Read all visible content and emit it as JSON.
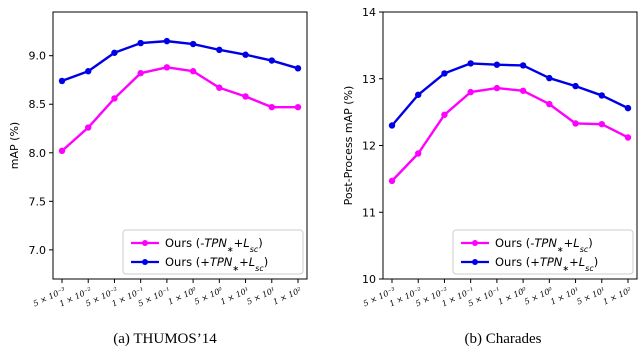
{
  "chart_data": [
    {
      "type": "line",
      "caption": "(a) THUMOS’14",
      "ylabel": "mAP (%)",
      "ylim": [
        6.7,
        9.45
      ],
      "yticks": [
        "7.0",
        "7.5",
        "8.0",
        "8.5",
        "9.0"
      ],
      "categories": [
        "5 × 10⁻³",
        "1 × 10⁻²",
        "5 × 10⁻²",
        "1 × 10⁻¹",
        "5 × 10⁻¹",
        "1 × 10⁰",
        "5 × 10⁰",
        "1 × 10¹",
        "5 × 10¹",
        "1 × 10²"
      ],
      "legend_position": "lower-right",
      "grid": false,
      "series": [
        {
          "name": "Ours (-TPN∗+Lsc)",
          "color": "#ff00ff",
          "values": [
            8.02,
            8.26,
            8.56,
            8.82,
            8.88,
            8.84,
            8.67,
            8.58,
            8.47,
            8.47
          ]
        },
        {
          "name": "Ours (+TPN∗+Lsc)",
          "color": "#0000e6",
          "values": [
            8.74,
            8.84,
            9.03,
            9.13,
            9.15,
            9.12,
            9.06,
            9.01,
            8.95,
            8.87
          ]
        }
      ]
    },
    {
      "type": "line",
      "caption": "(b) Charades",
      "ylabel": "Post-Process mAP (%)",
      "ylim": [
        10,
        14
      ],
      "yticks": [
        "10",
        "11",
        "12",
        "13",
        "14"
      ],
      "categories": [
        "5 × 10⁻³",
        "1 × 10⁻²",
        "5 × 10⁻²",
        "1 × 10⁻¹",
        "5 × 10⁻¹",
        "1 × 10⁰",
        "5 × 10⁰",
        "1 × 10¹",
        "5 × 10¹",
        "1 × 10²"
      ],
      "legend_position": "lower-right",
      "grid": false,
      "series": [
        {
          "name": "Ours (-TPN∗+Lsc)",
          "color": "#ff00ff",
          "values": [
            11.47,
            11.88,
            12.46,
            12.8,
            12.86,
            12.82,
            12.62,
            12.33,
            12.32,
            12.12
          ]
        },
        {
          "name": "Ours (+TPN∗+Lsc)",
          "color": "#0000e6",
          "values": [
            12.3,
            12.76,
            13.08,
            13.23,
            13.21,
            13.2,
            13.01,
            12.89,
            12.75,
            12.56
          ]
        }
      ]
    }
  ]
}
